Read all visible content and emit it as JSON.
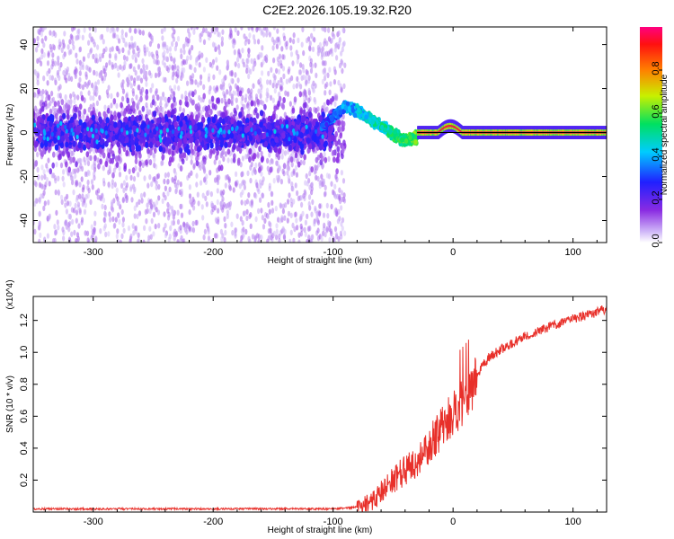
{
  "title": "C2E2.2026.105.19.32.R20",
  "chart_data": [
    {
      "type": "heatmap",
      "name": "spectrogram",
      "xlabel": "Height of straight line (km)",
      "ylabel": "Frequency (Hz)",
      "xlim": [
        -350,
        128
      ],
      "ylim": [
        -50,
        48
      ],
      "xticks": [
        -300,
        -200,
        -100,
        0,
        100
      ],
      "yticks": [
        -40,
        -20,
        0,
        20,
        40
      ],
      "colorbar": {
        "label": "Normalized spectral amplitude",
        "range": [
          0,
          1
        ],
        "ticks": [
          "0.0",
          "0.2",
          "0.4",
          "0.6",
          "0.8"
        ],
        "tick_values": [
          0.0,
          0.2,
          0.4,
          0.6,
          0.8
        ],
        "colormap": "hsv-reversed (violet to red)"
      },
      "features": {
        "noise_region_x": [
          -350,
          -90
        ],
        "noise_band_center_hz": 0,
        "noise_band_halfwidth_hz": 10,
        "transition_x": [
          -110,
          -30
        ],
        "transition_peak_hz": 12,
        "dip_x": -40,
        "dip_hz": -4,
        "bump_x": -3,
        "bump_hz": 3,
        "stable_region_x": [
          -30,
          128
        ],
        "stable_amplitude": 0.95
      }
    },
    {
      "type": "line",
      "name": "snr",
      "xlabel": "Height of straight line (km)",
      "ylabel": "SNR (10 * v/v)",
      "y_multiplier": "(x10^4)",
      "xlim": [
        -350,
        128
      ],
      "ylim": [
        0,
        1.35
      ],
      "xticks": [
        -300,
        -200,
        -100,
        0,
        100
      ],
      "yticks": [
        0.2,
        0.4,
        0.6,
        0.8,
        1.0,
        1.2
      ],
      "series": [
        {
          "name": "SNR",
          "color": "#e8302a",
          "points": [
            [
              -350,
              0.02
            ],
            [
              -300,
              0.02
            ],
            [
              -200,
              0.02
            ],
            [
              -100,
              0.02
            ],
            [
              -80,
              0.03
            ],
            [
              -70,
              0.06
            ],
            [
              -60,
              0.12
            ],
            [
              -50,
              0.2
            ],
            [
              -40,
              0.26
            ],
            [
              -30,
              0.33
            ],
            [
              -20,
              0.42
            ],
            [
              -10,
              0.52
            ],
            [
              0,
              0.62
            ],
            [
              10,
              0.7
            ],
            [
              15,
              0.75
            ],
            [
              20,
              0.85
            ],
            [
              25,
              0.92
            ],
            [
              30,
              0.97
            ],
            [
              40,
              1.02
            ],
            [
              50,
              1.06
            ],
            [
              60,
              1.1
            ],
            [
              70,
              1.13
            ],
            [
              80,
              1.16
            ],
            [
              90,
              1.18
            ],
            [
              100,
              1.21
            ],
            [
              110,
              1.23
            ],
            [
              128,
              1.27
            ]
          ]
        }
      ]
    }
  ],
  "colors": {
    "axis": "#000000",
    "snr_line": "#e8302a",
    "zero_line": "#000000"
  }
}
